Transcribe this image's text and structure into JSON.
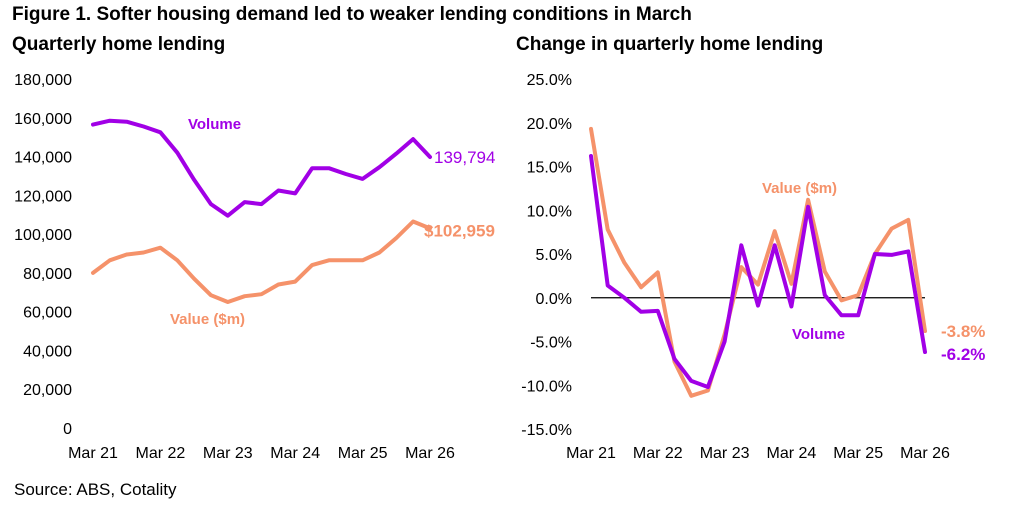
{
  "figure_title": "Figure 1. Softer housing demand led to weaker lending conditions in March",
  "source": "Source: ABS, Cotality",
  "colors": {
    "volume": "#A100E6",
    "value": "#F5926A",
    "axis": "#000000"
  },
  "chart_data": [
    {
      "type": "line",
      "title": "Quarterly home lending",
      "xlabel": "",
      "ylabel": "",
      "ylim": [
        0,
        180000
      ],
      "yticks": [
        "0",
        "20,000",
        "40,000",
        "60,000",
        "80,000",
        "100,000",
        "120,000",
        "140,000",
        "160,000",
        "180,000"
      ],
      "xticks": [
        "Mar 21",
        "Mar 22",
        "Mar 23",
        "Mar 24",
        "Mar 25",
        "Mar 26"
      ],
      "x": [
        "Mar 21",
        "Jun 21",
        "Sep 21",
        "Dec 21",
        "Mar 22",
        "Jun 22",
        "Sep 22",
        "Dec 22",
        "Mar 23",
        "Jun 23",
        "Sep 23",
        "Dec 23",
        "Mar 24",
        "Jun 24",
        "Sep 24",
        "Dec 24",
        "Mar 25",
        "Jun 25",
        "Sep 25",
        "Dec 25",
        "Mar 26"
      ],
      "series": [
        {
          "name": "Volume",
          "label": "Volume",
          "end_label": "139,794",
          "values": [
            156500,
            158500,
            158000,
            155500,
            152500,
            142000,
            128000,
            115500,
            109500,
            116500,
            115500,
            122500,
            121000,
            134000,
            134000,
            131000,
            128500,
            134500,
            141500,
            149000,
            139794
          ]
        },
        {
          "name": "Value ($m)",
          "label": "Value ($m)",
          "end_label": "$102,959",
          "values": [
            80000,
            86500,
            89500,
            90500,
            93000,
            86500,
            77000,
            68500,
            65000,
            68000,
            69000,
            74000,
            75500,
            84000,
            86500,
            86500,
            86500,
            90500,
            98000,
            106500,
            102959
          ]
        }
      ]
    },
    {
      "type": "line",
      "title": "Change in quarterly home lending",
      "xlabel": "",
      "ylabel": "",
      "ylim": [
        -15,
        25
      ],
      "yticks": [
        "-15.0%",
        "-10.0%",
        "-5.0%",
        "0.0%",
        "5.0%",
        "10.0%",
        "15.0%",
        "20.0%",
        "25.0%"
      ],
      "xticks": [
        "Mar 21",
        "Mar 22",
        "Mar 23",
        "Mar 24",
        "Mar 25",
        "Mar 26"
      ],
      "x": [
        "Mar 21",
        "Jun 21",
        "Sep 21",
        "Dec 21",
        "Mar 22",
        "Jun 22",
        "Sep 22",
        "Dec 22",
        "Mar 23",
        "Jun 23",
        "Sep 23",
        "Dec 23",
        "Mar 24",
        "Jun 24",
        "Sep 24",
        "Dec 24",
        "Mar 25",
        "Jun 25",
        "Sep 25",
        "Dec 25",
        "Mar 26"
      ],
      "series": [
        {
          "name": "Volume",
          "label": "Volume",
          "end_label": "-6.2%",
          "values": [
            16.2,
            1.4,
            0,
            -1.6,
            -1.5,
            -7.0,
            -9.5,
            -10.2,
            -5.0,
            6.0,
            -0.9,
            6.0,
            -1.0,
            10.4,
            0.3,
            -2.0,
            -2.0,
            5.0,
            4.9,
            5.3,
            -6.2
          ]
        },
        {
          "name": "Value ($m)",
          "label": "Value ($m)",
          "end_label": "-3.8%",
          "values": [
            19.3,
            7.8,
            4.0,
            1.2,
            2.9,
            -7.3,
            -11.2,
            -10.6,
            -4.2,
            3.5,
            1.5,
            7.6,
            1.6,
            11.2,
            3.0,
            -0.3,
            0.3,
            5.0,
            7.9,
            8.9,
            -3.8
          ]
        }
      ]
    }
  ]
}
